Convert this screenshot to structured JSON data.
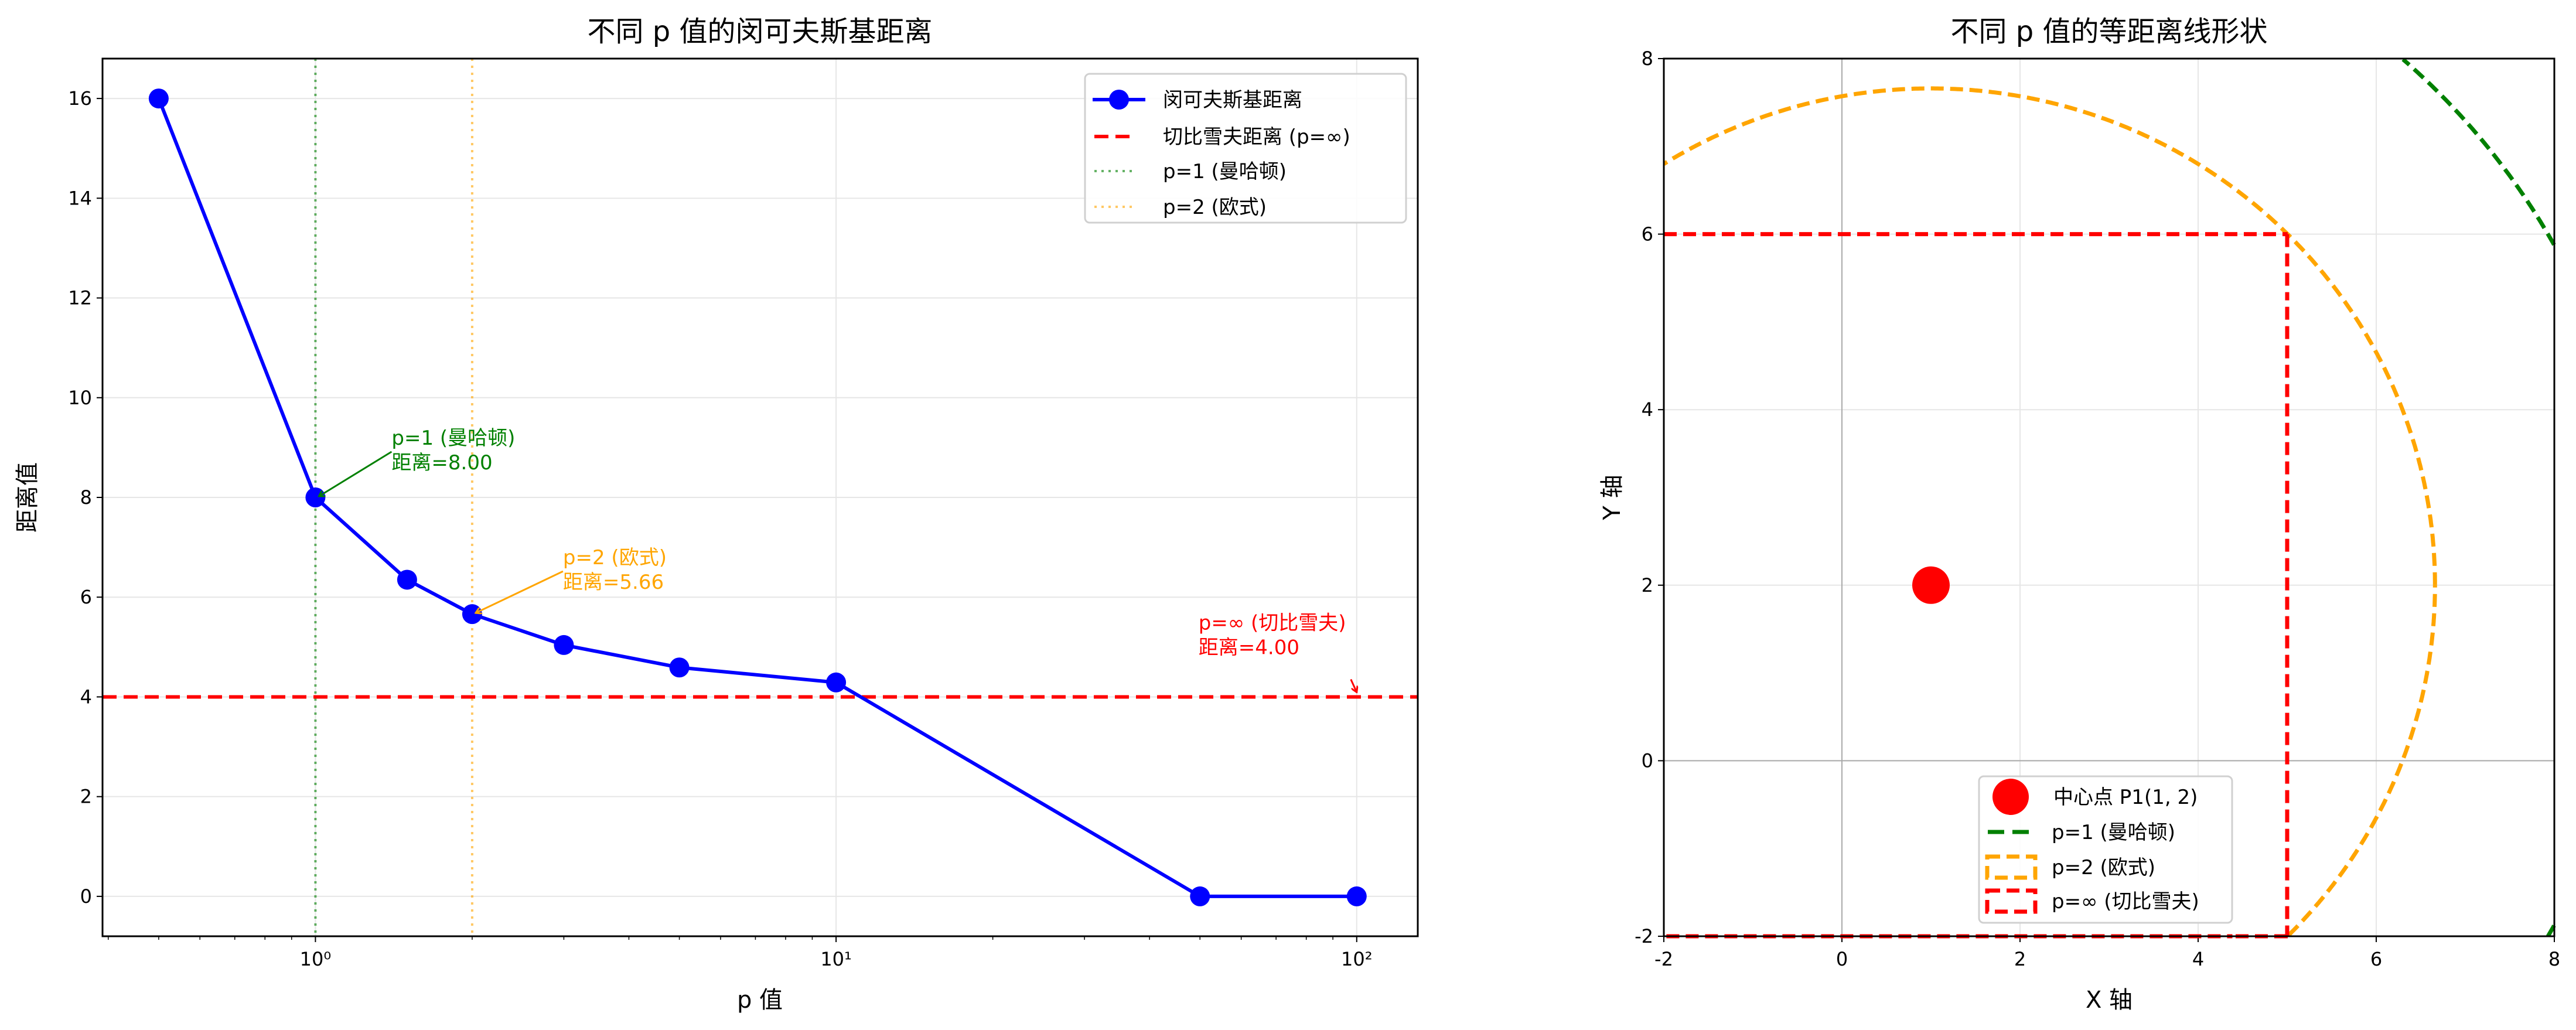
{
  "chart_data": [
    {
      "type": "line",
      "title": "不同 p 值的闵可夫斯基距离",
      "xlabel": "p 值",
      "ylabel": "距离值",
      "xscale": "log",
      "xlim": [
        0.39,
        131
      ],
      "ylim": [
        -0.8,
        16.8
      ],
      "xticks": [
        1,
        10,
        100
      ],
      "xtick_labels": [
        "10⁰",
        "10¹",
        "10²"
      ],
      "yticks": [
        0,
        2,
        4,
        6,
        8,
        10,
        12,
        14,
        16
      ],
      "grid": true,
      "legend_position": "top-right",
      "series": [
        {
          "name": "闵可夫斯基距离",
          "color": "#0000ff",
          "style": "solid-marker",
          "x": [
            0.5,
            1,
            1.5,
            2,
            3,
            5,
            10,
            50,
            100
          ],
          "y": [
            16,
            8,
            6.35,
            5.66,
            5.04,
            4.59,
            4.29,
            0,
            0
          ]
        },
        {
          "name": "切比雪夫距离 (p=∞)",
          "color": "#ff0000",
          "style": "dashed-hline",
          "y": 4
        },
        {
          "name": "p=1 (曼哈顿)",
          "color": "#008000",
          "style": "dotted-vline",
          "x": 1
        },
        {
          "name": "p=2 (欧式)",
          "color": "#ffa500",
          "style": "dotted-vline",
          "x": 2
        }
      ],
      "annotations": [
        {
          "lines": [
            "p=1 (曼哈顿)",
            "距离=8.00"
          ],
          "x": 1,
          "y": 8,
          "color": "#008000"
        },
        {
          "lines": [
            "p=2 (欧式)",
            "距离=5.66"
          ],
          "x": 2,
          "y": 5.66,
          "color": "#ffa500"
        },
        {
          "lines": [
            "p=∞ (切比雪夫)",
            "距离=4.00"
          ],
          "x": 100,
          "y": 4,
          "color": "#ff0000"
        }
      ]
    },
    {
      "type": "scatter",
      "title": "不同 p 值的等距离线形状",
      "xlabel": "X 轴",
      "ylabel": "Y 轴",
      "xlim": [
        -2,
        8
      ],
      "ylim": [
        -2,
        8
      ],
      "xticks": [
        -2,
        0,
        2,
        4,
        6,
        8
      ],
      "yticks": [
        -2,
        0,
        2,
        4,
        6,
        8
      ],
      "grid": true,
      "legend_position": "bottom-center",
      "center": {
        "name": "中心点 P1(1, 2)",
        "x": 1,
        "y": 2,
        "color": "#ff0000"
      },
      "contours": [
        {
          "name": "p=1 (曼哈顿)",
          "color": "#008000",
          "shape": "circle",
          "radius": 8
        },
        {
          "name": "p=2 (欧式)",
          "color": "#ffa500",
          "shape": "circle",
          "radius": 5.66
        },
        {
          "name": "p=∞ (切比雪夫)",
          "color": "#ff0000",
          "shape": "square",
          "half_width": 4
        }
      ]
    }
  ]
}
